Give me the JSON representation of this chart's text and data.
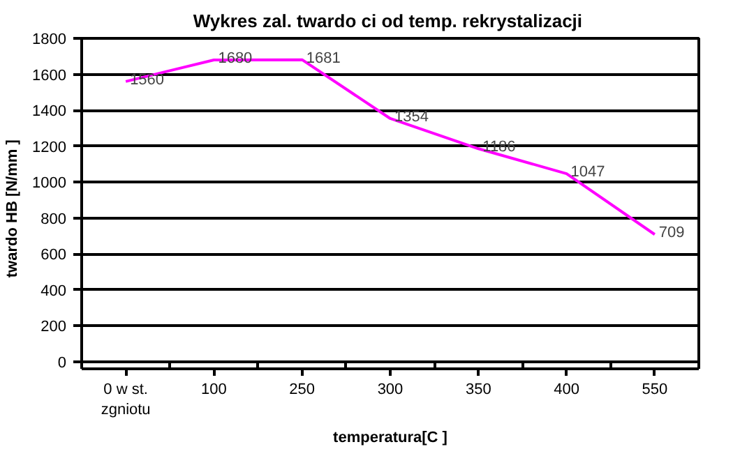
{
  "chart_data": {
    "type": "line",
    "title": "Wykres zal. twardo  ci od temp. rekrystalizacji",
    "xlabel": "temperatura[C ]",
    "ylabel": "twardo     HB [N/mm ]",
    "categories": [
      "0 w st.\nzgniotu",
      "100",
      "250",
      "300",
      "350",
      "400",
      "550"
    ],
    "series": [
      {
        "color": "#ff00ff",
        "values": [
          1560,
          1680,
          1681,
          1354,
          1186,
          1047,
          709
        ]
      }
    ],
    "ylim": [
      0,
      1800
    ],
    "yticks": [
      0,
      200,
      400,
      600,
      800,
      1000,
      1200,
      1400,
      1600,
      1800
    ],
    "grid": "y",
    "data_labels": true,
    "marker": "none",
    "line_style": "solid"
  }
}
